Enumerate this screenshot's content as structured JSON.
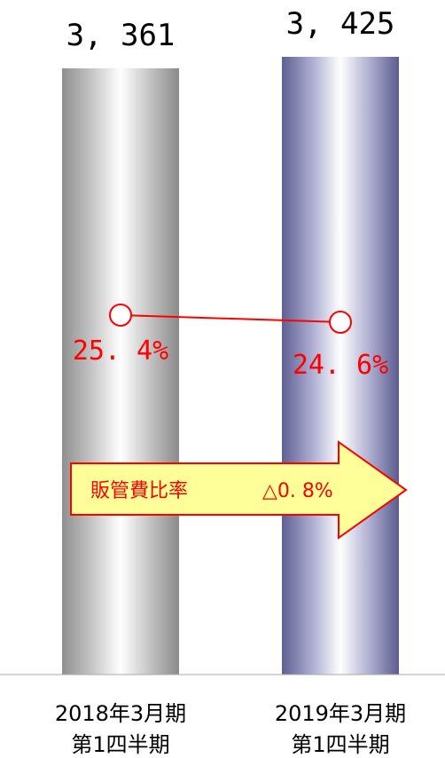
{
  "chart_data": {
    "type": "bar",
    "categories": [
      [
        "2018年3月期",
        "第1四半期"
      ],
      [
        "2019年3月期",
        "第1四半期"
      ]
    ],
    "values": [
      3361,
      3425
    ],
    "value_labels": [
      "3, 361",
      "3, 425"
    ],
    "ylim": [
      0,
      3425
    ],
    "ratio_series": {
      "values": [
        25.4,
        24.6
      ],
      "labels": [
        "25. 4%",
        "24. 6%"
      ],
      "color": "#ff0000"
    },
    "annotation": {
      "text": "販管費比率",
      "change": "△0. 8%",
      "fill": "#ffff99",
      "stroke": "#ff0000"
    },
    "bar_colors": [
      "#9a9a9a",
      "#6a6a9c"
    ]
  }
}
